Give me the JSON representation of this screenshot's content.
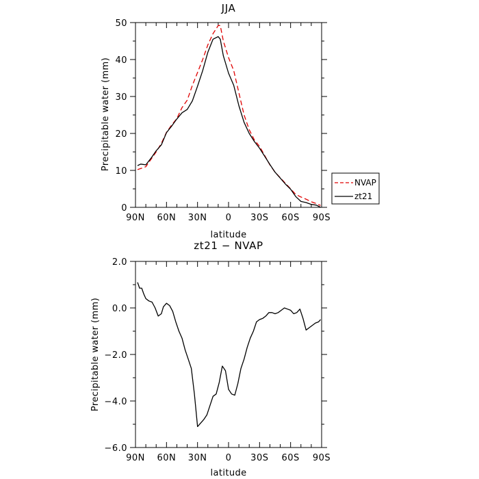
{
  "chart_data": [
    {
      "type": "line",
      "title": "JJA",
      "xlabel": "latitude",
      "ylabel": "Precipitable water (mm)",
      "xlim": [
        90,
        -90
      ],
      "ylim": [
        0,
        50
      ],
      "xticks": [
        90,
        60,
        30,
        0,
        -30,
        -60,
        -90
      ],
      "xtick_labels": [
        "90N",
        "60N",
        "30N",
        "0",
        "30S",
        "60S",
        "90S"
      ],
      "yticks": [
        0,
        10,
        20,
        30,
        40,
        50
      ],
      "ytick_labels": [
        "0",
        "10",
        "20",
        "30",
        "40",
        "50"
      ],
      "grid": false,
      "legend_position": "right",
      "series": [
        {
          "name": "NVAP",
          "color": "#e00000",
          "dash": "dashed",
          "x": [
            88,
            85,
            80,
            75,
            70,
            65,
            60,
            55,
            50,
            45,
            40,
            35,
            30,
            25,
            20,
            15,
            10,
            8,
            5,
            0,
            -5,
            -10,
            -15,
            -20,
            -25,
            -30,
            -35,
            -40,
            -45,
            -50,
            -55,
            -60,
            -65,
            -70,
            -75,
            -80,
            -85,
            -89
          ],
          "y": [
            10.2,
            10.5,
            11,
            13,
            15,
            17.3,
            20.3,
            22.3,
            24,
            27,
            29,
            33,
            36.5,
            40,
            44,
            47,
            49.2,
            49.2,
            45,
            40.5,
            37,
            31,
            25,
            21,
            18.2,
            16.5,
            14,
            11.5,
            9.5,
            8,
            6.5,
            5,
            3.5,
            2.8,
            2.2,
            1.5,
            1,
            0.5
          ]
        },
        {
          "name": "zt21",
          "color": "#000000",
          "dash": "solid",
          "x": [
            88,
            85,
            80,
            75,
            70,
            65,
            60,
            55,
            50,
            45,
            40,
            35,
            30,
            25,
            20,
            15,
            10,
            8,
            5,
            0,
            -5,
            -10,
            -15,
            -20,
            -25,
            -30,
            -35,
            -40,
            -45,
            -50,
            -55,
            -60,
            -65,
            -70,
            -75,
            -80,
            -85,
            -89
          ],
          "y": [
            11.3,
            11.7,
            11.5,
            13.3,
            15.3,
            16.9,
            20.2,
            22,
            23.9,
            25.6,
            26.5,
            28.8,
            32.8,
            37,
            42,
            45.5,
            46.2,
            45.5,
            41,
            36.3,
            33,
            27.5,
            23,
            20,
            17.8,
            16,
            13.8,
            11.6,
            9.5,
            7.9,
            6.3,
            4.9,
            2.9,
            1.6,
            1.3,
            0.8,
            0.6,
            0
          ]
        }
      ]
    },
    {
      "type": "line",
      "title": "zt21 − NVAP",
      "xlabel": "latitude",
      "ylabel": "Precipitable water (mm)",
      "xlim": [
        90,
        -90
      ],
      "ylim": [
        -6,
        2
      ],
      "xticks": [
        90,
        60,
        30,
        0,
        -30,
        -60,
        -90
      ],
      "xtick_labels": [
        "90N",
        "60N",
        "30N",
        "0",
        "30S",
        "60S",
        "90S"
      ],
      "yticks": [
        -6,
        -4,
        -2,
        0,
        2
      ],
      "ytick_labels": [
        "−6.0",
        "−4.0",
        "−2.0",
        "0.0",
        "2.0"
      ],
      "grid": false,
      "series": [
        {
          "color": "#000000",
          "dash": "solid",
          "x": [
            88,
            86,
            84,
            82,
            80,
            77,
            74,
            71,
            68,
            65,
            63,
            60,
            57,
            54,
            51,
            48,
            45,
            42,
            39,
            36,
            33,
            30,
            27,
            24,
            21,
            18,
            15,
            12,
            9,
            6,
            3,
            0,
            -3,
            -6,
            -9,
            -12,
            -15,
            -18,
            -21,
            -24,
            -27,
            -30,
            -33,
            -36,
            -39,
            -42,
            -45,
            -48,
            -51,
            -54,
            -57,
            -60,
            -63,
            -66,
            -69,
            -72,
            -75,
            -78,
            -81,
            -84,
            -87,
            -89
          ],
          "y": [
            1.1,
            0.85,
            0.85,
            0.6,
            0.4,
            0.3,
            0.25,
            0.0,
            -0.35,
            -0.25,
            0.05,
            0.2,
            0.1,
            -0.15,
            -0.6,
            -1.0,
            -1.3,
            -1.8,
            -2.2,
            -2.6,
            -3.7,
            -5.1,
            -4.95,
            -4.8,
            -4.6,
            -4.2,
            -3.8,
            -3.7,
            -3.2,
            -2.5,
            -2.7,
            -3.5,
            -3.7,
            -3.75,
            -3.25,
            -2.6,
            -2.2,
            -1.7,
            -1.3,
            -1.0,
            -0.6,
            -0.5,
            -0.45,
            -0.35,
            -0.2,
            -0.2,
            -0.25,
            -0.2,
            -0.1,
            0.0,
            -0.05,
            -0.1,
            -0.25,
            -0.2,
            -0.05,
            -0.45,
            -0.95,
            -0.85,
            -0.75,
            -0.65,
            -0.6,
            -0.5
          ]
        }
      ]
    }
  ]
}
